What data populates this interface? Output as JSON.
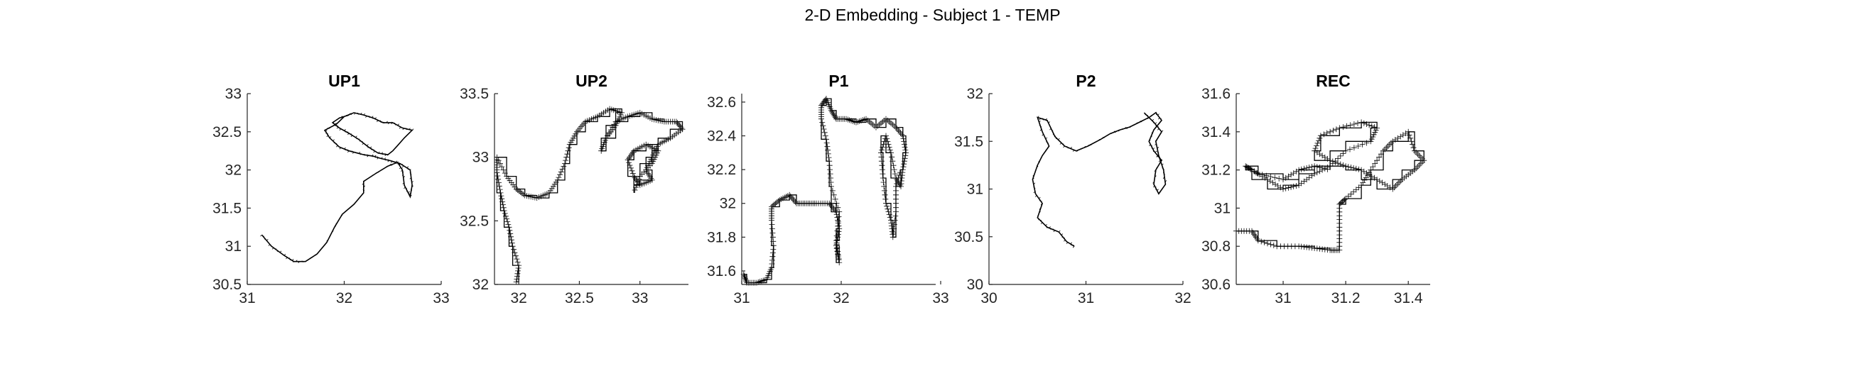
{
  "figure": {
    "title": "2-D Embedding - Subject 1 - TEMP"
  },
  "chart_data": [
    {
      "type": "line",
      "title": "UP1",
      "xlim": [
        31,
        33
      ],
      "ylim": [
        30.5,
        33
      ],
      "xticks": [
        31,
        32,
        33
      ],
      "yticks": [
        30.5,
        31,
        31.5,
        32,
        32.5,
        33
      ],
      "xticklabels": [
        "31",
        "32",
        "33"
      ],
      "yticklabels": [
        "30.5",
        "31",
        "31.5",
        "32",
        "32.5",
        "33"
      ],
      "grid": false,
      "style": "random-walk trajectory",
      "series": [
        {
          "points": [
            [
              31.15,
              31.15
            ],
            [
              31.25,
              31.0
            ],
            [
              31.38,
              30.88
            ],
            [
              31.48,
              30.8
            ],
            [
              31.6,
              30.8
            ],
            [
              31.72,
              30.9
            ],
            [
              31.82,
              31.05
            ],
            [
              31.9,
              31.25
            ],
            [
              31.98,
              31.42
            ],
            [
              32.1,
              31.55
            ],
            [
              32.2,
              31.7
            ],
            [
              32.2,
              31.85
            ],
            [
              32.32,
              31.95
            ],
            [
              32.45,
              32.05
            ],
            [
              32.55,
              32.1
            ],
            [
              32.6,
              32.0
            ],
            [
              32.62,
              31.8
            ],
            [
              32.68,
              31.65
            ],
            [
              32.7,
              31.8
            ],
            [
              32.68,
              32.0
            ],
            [
              32.58,
              32.08
            ],
            [
              32.48,
              32.12
            ],
            [
              32.38,
              32.15
            ],
            [
              32.3,
              32.18
            ],
            [
              32.2,
              32.2
            ],
            [
              32.05,
              32.25
            ],
            [
              31.95,
              32.3
            ],
            [
              31.85,
              32.42
            ],
            [
              31.8,
              32.52
            ],
            [
              31.92,
              32.6
            ],
            [
              32.0,
              32.7
            ],
            [
              32.1,
              32.75
            ],
            [
              32.2,
              32.72
            ],
            [
              32.3,
              32.68
            ],
            [
              32.4,
              32.62
            ],
            [
              32.5,
              32.62
            ],
            [
              32.6,
              32.55
            ],
            [
              32.7,
              32.52
            ],
            [
              32.62,
              32.42
            ],
            [
              32.55,
              32.32
            ],
            [
              32.5,
              32.25
            ],
            [
              32.45,
              32.2
            ],
            [
              32.35,
              32.22
            ],
            [
              32.25,
              32.3
            ],
            [
              32.15,
              32.4
            ],
            [
              32.05,
              32.48
            ],
            [
              31.95,
              32.55
            ],
            [
              31.88,
              32.62
            ],
            [
              31.95,
              32.68
            ],
            [
              32.05,
              32.72
            ]
          ]
        }
      ]
    },
    {
      "type": "line",
      "title": "UP2",
      "xlim": [
        31.8,
        33.4
      ],
      "ylim": [
        32,
        33.5
      ],
      "xticks": [
        32,
        32.5,
        33
      ],
      "yticks": [
        32,
        32.5,
        33,
        33.5
      ],
      "xticklabels": [
        "32",
        "32.5",
        "33"
      ],
      "yticklabels": [
        "32",
        "32.5",
        "33",
        "33.5"
      ],
      "grid": false,
      "style": "staircase trajectory",
      "series": [
        {
          "points": [
            [
              31.98,
              32.02
            ],
            [
              32.0,
              32.15
            ],
            [
              31.95,
              32.3
            ],
            [
              31.92,
              32.45
            ],
            [
              31.88,
              32.58
            ],
            [
              31.85,
              32.72
            ],
            [
              31.82,
              32.88
            ],
            [
              31.82,
              33.0
            ],
            [
              31.9,
              32.85
            ],
            [
              31.98,
              32.75
            ],
            [
              32.05,
              32.7
            ],
            [
              32.15,
              32.68
            ],
            [
              32.25,
              32.72
            ],
            [
              32.32,
              32.82
            ],
            [
              32.38,
              32.95
            ],
            [
              32.42,
              33.1
            ],
            [
              32.48,
              33.2
            ],
            [
              32.55,
              33.28
            ],
            [
              32.65,
              33.32
            ],
            [
              32.75,
              33.38
            ],
            [
              32.85,
              33.35
            ],
            [
              32.8,
              33.25
            ],
            [
              32.72,
              33.15
            ],
            [
              32.68,
              33.05
            ],
            [
              32.72,
              33.15
            ],
            [
              32.8,
              33.28
            ],
            [
              32.9,
              33.32
            ],
            [
              33.0,
              33.35
            ],
            [
              33.1,
              33.3
            ],
            [
              33.2,
              33.28
            ],
            [
              33.3,
              33.28
            ],
            [
              33.35,
              33.22
            ],
            [
              33.25,
              33.15
            ],
            [
              33.15,
              33.1
            ],
            [
              33.1,
              33.0
            ],
            [
              33.05,
              32.9
            ],
            [
              33.1,
              32.82
            ],
            [
              33.0,
              32.78
            ],
            [
              32.95,
              32.85
            ],
            [
              32.9,
              32.98
            ],
            [
              32.95,
              33.05
            ],
            [
              33.05,
              33.1
            ],
            [
              33.15,
              33.05
            ],
            [
              33.1,
              32.95
            ],
            [
              33.0,
              32.85
            ],
            [
              32.95,
              32.72
            ]
          ]
        }
      ]
    },
    {
      "type": "line",
      "title": "P1",
      "xlim": [
        31,
        32.95
      ],
      "ylim": [
        31.52,
        32.65
      ],
      "xticks": [
        31,
        32,
        33
      ],
      "yticks": [
        31.6,
        31.8,
        32,
        32.2,
        32.4,
        32.6
      ],
      "xticklabels": [
        "31",
        "32",
        "33"
      ],
      "yticklabels": [
        "31.6",
        "31.8",
        "32",
        "32.2",
        "32.4",
        "32.6"
      ],
      "grid": false,
      "style": "staircase trajectory",
      "series": [
        {
          "points": [
            [
              31.02,
              31.58
            ],
            [
              31.05,
              31.53
            ],
            [
              31.15,
              31.53
            ],
            [
              31.25,
              31.55
            ],
            [
              31.3,
              31.62
            ],
            [
              31.32,
              31.75
            ],
            [
              31.3,
              31.9
            ],
            [
              31.3,
              31.98
            ],
            [
              31.38,
              32.02
            ],
            [
              31.48,
              32.05
            ],
            [
              31.55,
              32.0
            ],
            [
              31.65,
              32.0
            ],
            [
              31.75,
              32.0
            ],
            [
              31.88,
              32.0
            ],
            [
              31.95,
              31.95
            ],
            [
              31.98,
              31.85
            ],
            [
              31.95,
              31.75
            ],
            [
              31.98,
              31.65
            ],
            [
              31.95,
              31.78
            ],
            [
              31.98,
              31.95
            ],
            [
              31.9,
              32.1
            ],
            [
              31.88,
              32.25
            ],
            [
              31.85,
              32.38
            ],
            [
              31.8,
              32.5
            ],
            [
              31.8,
              32.58
            ],
            [
              31.85,
              32.62
            ],
            [
              31.9,
              32.55
            ],
            [
              31.95,
              32.5
            ],
            [
              32.05,
              32.5
            ],
            [
              32.15,
              32.48
            ],
            [
              32.25,
              32.5
            ],
            [
              32.35,
              32.45
            ],
            [
              32.45,
              32.5
            ],
            [
              32.55,
              32.45
            ],
            [
              32.62,
              32.4
            ],
            [
              32.65,
              32.3
            ],
            [
              32.62,
              32.2
            ],
            [
              32.6,
              32.1
            ],
            [
              32.55,
              32.15
            ],
            [
              32.5,
              32.3
            ],
            [
              32.45,
              32.4
            ],
            [
              32.4,
              32.3
            ],
            [
              32.42,
              32.15
            ],
            [
              32.45,
              32.0
            ],
            [
              32.5,
              31.9
            ],
            [
              32.52,
              31.8
            ],
            [
              32.55,
              31.95
            ],
            [
              32.55,
              32.1
            ],
            [
              32.6,
              32.2
            ]
          ]
        }
      ]
    },
    {
      "type": "line",
      "title": "P2",
      "xlim": [
        30,
        32
      ],
      "ylim": [
        30,
        32
      ],
      "xticks": [
        30,
        31,
        32
      ],
      "yticks": [
        30,
        30.5,
        31,
        31.5,
        32
      ],
      "xticklabels": [
        "30",
        "31",
        "32"
      ],
      "yticklabels": [
        "30",
        "30.5",
        "31",
        "31.5",
        "32"
      ],
      "grid": false,
      "style": "random-walk trajectory",
      "series": [
        {
          "points": [
            [
              30.88,
              30.4
            ],
            [
              30.8,
              30.45
            ],
            [
              30.72,
              30.55
            ],
            [
              30.6,
              30.6
            ],
            [
              30.5,
              30.7
            ],
            [
              30.55,
              30.85
            ],
            [
              30.48,
              30.95
            ],
            [
              30.45,
              31.1
            ],
            [
              30.5,
              31.25
            ],
            [
              30.55,
              31.35
            ],
            [
              30.62,
              31.45
            ],
            [
              30.55,
              31.6
            ],
            [
              30.5,
              31.75
            ],
            [
              30.6,
              31.72
            ],
            [
              30.68,
              31.55
            ],
            [
              30.78,
              31.45
            ],
            [
              30.9,
              31.4
            ],
            [
              31.02,
              31.45
            ],
            [
              31.15,
              31.52
            ],
            [
              31.25,
              31.58
            ],
            [
              31.35,
              31.62
            ],
            [
              31.45,
              31.65
            ],
            [
              31.55,
              31.7
            ],
            [
              31.65,
              31.75
            ],
            [
              31.72,
              31.8
            ],
            [
              31.78,
              31.72
            ],
            [
              31.7,
              31.62
            ],
            [
              31.65,
              31.5
            ],
            [
              31.7,
              31.4
            ],
            [
              31.78,
              31.3
            ],
            [
              31.72,
              31.2
            ],
            [
              31.7,
              31.05
            ],
            [
              31.75,
              30.95
            ],
            [
              31.82,
              31.05
            ],
            [
              31.8,
              31.2
            ],
            [
              31.75,
              31.35
            ],
            [
              31.72,
              31.5
            ],
            [
              31.78,
              31.6
            ],
            [
              31.7,
              31.7
            ],
            [
              31.6,
              31.8
            ]
          ]
        }
      ]
    },
    {
      "type": "line",
      "title": "REC",
      "xlim": [
        30.85,
        31.47
      ],
      "ylim": [
        30.6,
        31.6
      ],
      "xticks": [
        31,
        31.2,
        31.4
      ],
      "yticks": [
        30.6,
        30.8,
        31,
        31.2,
        31.4,
        31.6
      ],
      "xticklabels": [
        "31",
        "31.2",
        "31.4"
      ],
      "yticklabels": [
        "30.6",
        "30.8",
        "31",
        "31.2",
        "31.4",
        "31.6"
      ],
      "grid": false,
      "style": "staircase trajectory",
      "series": [
        {
          "points": [
            [
              30.85,
              30.88
            ],
            [
              30.9,
              30.88
            ],
            [
              30.92,
              30.83
            ],
            [
              30.98,
              30.8
            ],
            [
              31.05,
              30.8
            ],
            [
              31.1,
              30.79
            ],
            [
              31.15,
              30.78
            ],
            [
              31.18,
              30.78
            ],
            [
              31.18,
              30.9
            ],
            [
              31.18,
              31.02
            ],
            [
              31.2,
              31.05
            ],
            [
              31.25,
              31.12
            ],
            [
              31.28,
              31.2
            ],
            [
              31.32,
              31.3
            ],
            [
              31.35,
              31.35
            ],
            [
              31.4,
              31.4
            ],
            [
              31.42,
              31.3
            ],
            [
              31.45,
              31.25
            ],
            [
              31.42,
              31.2
            ],
            [
              31.38,
              31.15
            ],
            [
              31.35,
              31.1
            ],
            [
              31.3,
              31.15
            ],
            [
              31.25,
              31.2
            ],
            [
              31.2,
              31.22
            ],
            [
              31.15,
              31.25
            ],
            [
              31.1,
              31.3
            ],
            [
              31.12,
              31.38
            ],
            [
              31.18,
              31.42
            ],
            [
              31.25,
              31.45
            ],
            [
              31.3,
              31.42
            ],
            [
              31.28,
              31.35
            ],
            [
              31.2,
              31.3
            ],
            [
              31.15,
              31.22
            ],
            [
              31.1,
              31.18
            ],
            [
              31.05,
              31.12
            ],
            [
              31.0,
              31.1
            ],
            [
              30.95,
              31.15
            ],
            [
              30.9,
              31.2
            ],
            [
              30.88,
              31.22
            ],
            [
              30.92,
              31.18
            ],
            [
              31.0,
              31.15
            ],
            [
              31.05,
              31.2
            ],
            [
              31.1,
              31.22
            ],
            [
              31.15,
              31.2
            ]
          ]
        }
      ]
    }
  ]
}
